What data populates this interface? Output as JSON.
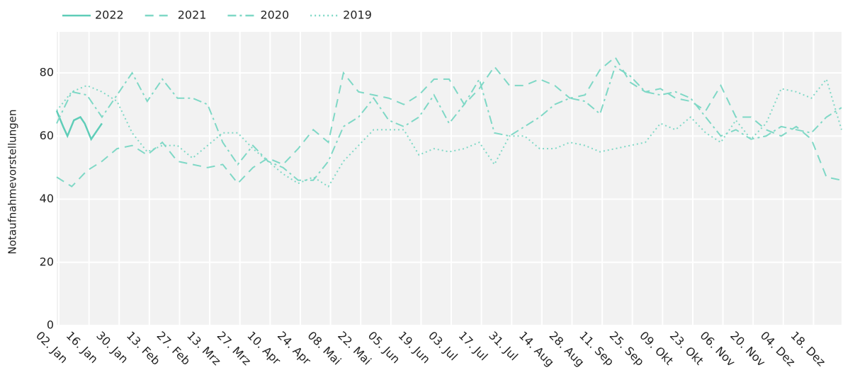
{
  "chart_data": {
    "type": "line",
    "y_label": "Notaufnahmevorstellungen",
    "xlim": [
      1,
      365
    ],
    "ylim": [
      0,
      93
    ],
    "yticks": [
      0,
      20,
      40,
      60,
      80
    ],
    "xticks": [
      {
        "value": 2,
        "label": "02. Jan"
      },
      {
        "value": 16,
        "label": "16. Jan"
      },
      {
        "value": 30,
        "label": "30. Jan"
      },
      {
        "value": 44,
        "label": "13. Feb"
      },
      {
        "value": 58,
        "label": "27. Feb"
      },
      {
        "value": 72,
        "label": "13. Mrz"
      },
      {
        "value": 86,
        "label": "27. Mrz"
      },
      {
        "value": 100,
        "label": "10. Apr"
      },
      {
        "value": 114,
        "label": "24. Apr"
      },
      {
        "value": 128,
        "label": "08. Mai"
      },
      {
        "value": 142,
        "label": "22. Mai"
      },
      {
        "value": 156,
        "label": "05. Jun"
      },
      {
        "value": 170,
        "label": "19. Jun"
      },
      {
        "value": 184,
        "label": "03. Jul"
      },
      {
        "value": 198,
        "label": "17. Jul"
      },
      {
        "value": 212,
        "label": "31. Jul"
      },
      {
        "value": 226,
        "label": "14. Aug"
      },
      {
        "value": 240,
        "label": "28. Aug"
      },
      {
        "value": 254,
        "label": "11. Sep"
      },
      {
        "value": 268,
        "label": "25. Sep"
      },
      {
        "value": 282,
        "label": "09. Okt"
      },
      {
        "value": 296,
        "label": "23. Okt"
      },
      {
        "value": 310,
        "label": "06. Nov"
      },
      {
        "value": 324,
        "label": "20. Nov"
      },
      {
        "value": 338,
        "label": "04. Dez"
      },
      {
        "value": 352,
        "label": "18. Dez"
      }
    ],
    "grid": true,
    "legend": "top-left",
    "series": [
      {
        "name": "2022",
        "color": "#5fcdb8",
        "dash": "solid",
        "x": [
          1,
          4,
          6,
          9,
          12,
          14,
          17,
          20,
          22
        ],
        "values": [
          68,
          63,
          60,
          65,
          66,
          64,
          59,
          62,
          64
        ]
      },
      {
        "name": "2021",
        "color": "#7fd8c6",
        "dash": "dash",
        "x": [
          1,
          8,
          15,
          22,
          29,
          36,
          43,
          50,
          57,
          64,
          71,
          78,
          85,
          92,
          99,
          106,
          113,
          120,
          127,
          134,
          141,
          148,
          155,
          162,
          169,
          176,
          183,
          190,
          197,
          204,
          211,
          218,
          225,
          232,
          239,
          246,
          253,
          260,
          267,
          274,
          281,
          288,
          295,
          302,
          309,
          316,
          323,
          330,
          337,
          344,
          351,
          358,
          365
        ],
        "values": [
          47,
          44,
          49,
          52,
          56,
          57,
          54,
          58,
          52,
          51,
          50,
          51,
          45,
          50,
          53,
          51,
          56,
          62,
          58,
          80,
          74,
          73,
          72,
          70,
          73,
          78,
          78,
          70,
          75,
          82,
          76,
          76,
          78,
          76,
          72,
          73,
          81,
          85,
          77,
          74,
          75,
          72,
          71,
          68,
          76,
          66,
          66,
          62,
          60,
          63,
          59,
          47,
          46
        ]
      },
      {
        "name": "2020",
        "color": "#7fd8c6",
        "dash": "dashdot",
        "x": [
          1,
          8,
          15,
          22,
          29,
          36,
          43,
          50,
          57,
          64,
          71,
          78,
          85,
          92,
          99,
          106,
          113,
          120,
          127,
          134,
          141,
          148,
          155,
          162,
          169,
          176,
          183,
          190,
          197,
          204,
          211,
          218,
          225,
          232,
          239,
          246,
          253,
          260,
          267,
          274,
          281,
          288,
          295,
          302,
          309,
          316,
          323,
          330,
          337,
          344,
          351,
          358,
          365
        ],
        "values": [
          64,
          74,
          73,
          66,
          73,
          80,
          71,
          78,
          72,
          72,
          70,
          58,
          51,
          57,
          52,
          50,
          46,
          46,
          52,
          63,
          66,
          72,
          65,
          63,
          66,
          73,
          64,
          70,
          78,
          61,
          60,
          63,
          66,
          70,
          72,
          71,
          67,
          82,
          79,
          74,
          73,
          74,
          72,
          66,
          60,
          62,
          59,
          60,
          63,
          62,
          61,
          66,
          69
        ]
      },
      {
        "name": "2019",
        "color": "#7fd8c6",
        "dash": "dot",
        "x": [
          1,
          8,
          15,
          22,
          29,
          36,
          43,
          50,
          57,
          64,
          71,
          78,
          85,
          92,
          99,
          106,
          113,
          120,
          127,
          134,
          141,
          148,
          155,
          162,
          169,
          176,
          183,
          190,
          197,
          204,
          211,
          218,
          225,
          232,
          239,
          246,
          253,
          260,
          267,
          274,
          281,
          288,
          295,
          302,
          309,
          316,
          323,
          330,
          337,
          344,
          351,
          358,
          365
        ],
        "values": [
          68,
          74,
          76,
          74,
          71,
          61,
          55,
          57,
          57,
          53,
          57,
          61,
          61,
          56,
          52,
          48,
          45,
          47,
          44,
          52,
          57,
          62,
          62,
          62,
          54,
          56,
          55,
          56,
          58,
          51,
          60,
          60,
          56,
          56,
          58,
          57,
          55,
          56,
          57,
          58,
          64,
          62,
          66,
          61,
          58,
          65,
          59,
          64,
          75,
          74,
          72,
          78,
          62
        ]
      }
    ]
  }
}
